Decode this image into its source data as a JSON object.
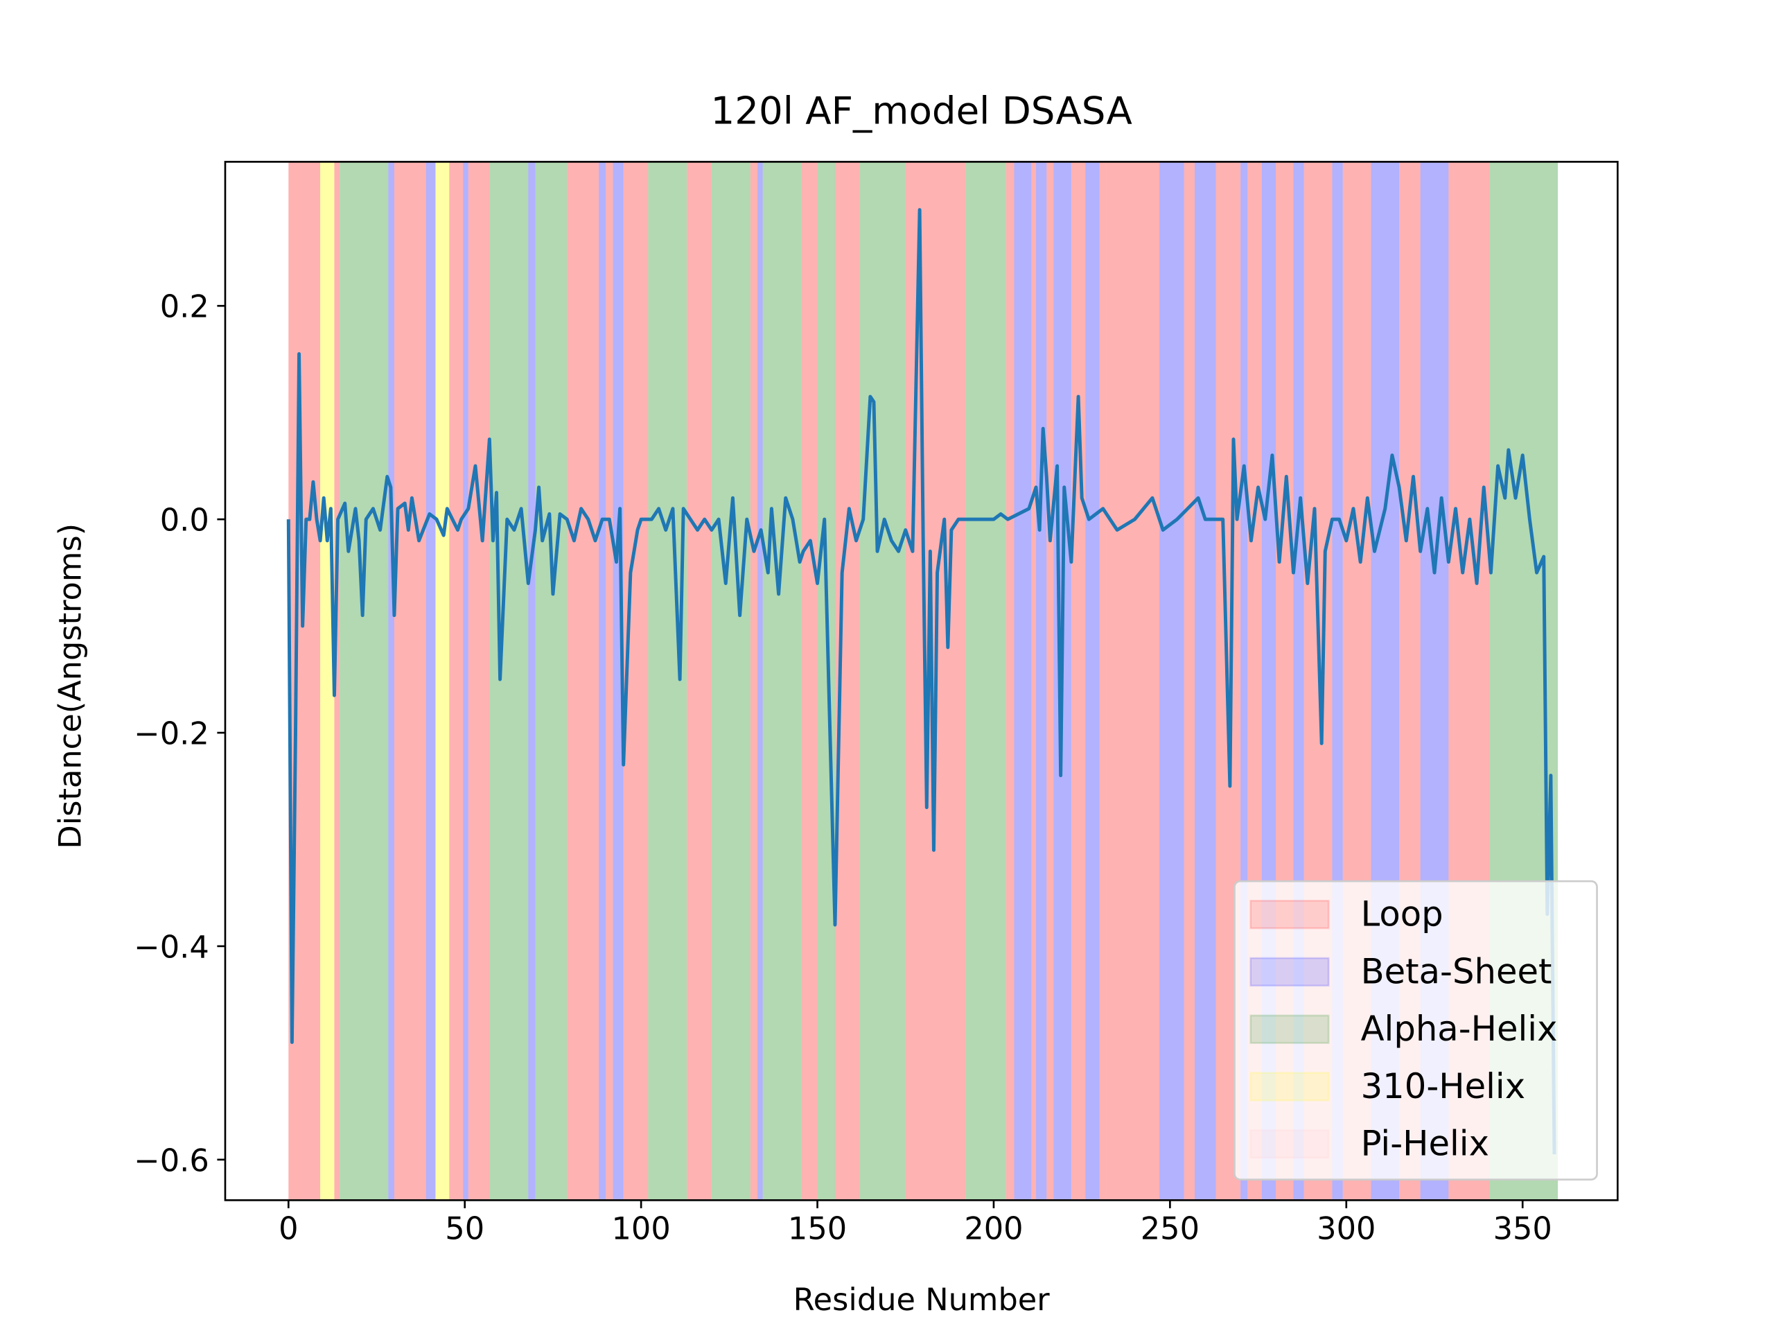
{
  "chart_data": {
    "type": "line",
    "title": "120l AF_model DSASA",
    "x_label": "Residue Number",
    "y_label": "Distance(Angstroms)",
    "xlim": [
      -17.95,
      376.95
    ],
    "ylim": [
      -0.638,
      0.335
    ],
    "xticks": [
      0,
      50,
      100,
      150,
      200,
      250,
      300,
      350
    ],
    "yticks": [
      {
        "value": -0.6,
        "label": "−0.6"
      },
      {
        "value": -0.4,
        "label": "−0.4"
      },
      {
        "value": -0.2,
        "label": "−0.2"
      },
      {
        "value": 0,
        "label": "0.0"
      },
      0.2
    ],
    "legend_position": "lower right",
    "legend": [
      {
        "name": "Loop",
        "color": "#ff0000"
      },
      {
        "name": "Beta-Sheet",
        "color": "#0000ff"
      },
      {
        "name": "Alpha-Helix",
        "color": "#008000"
      },
      {
        "name": "310-Helix",
        "color": "#ffff00"
      },
      {
        "name": "Pi-Helix",
        "color": "#ffc0cb"
      }
    ],
    "regions": [
      [
        0,
        9,
        0
      ],
      [
        9,
        13,
        3
      ],
      [
        13,
        14.5,
        0
      ],
      [
        14.5,
        28.3,
        2
      ],
      [
        28.3,
        30,
        1
      ],
      [
        30,
        39,
        0
      ],
      [
        39,
        41.7,
        1
      ],
      [
        41.7,
        45.6,
        3
      ],
      [
        45.6,
        49.5,
        0
      ],
      [
        49.5,
        51,
        1
      ],
      [
        51,
        57,
        0
      ],
      [
        57,
        68,
        2
      ],
      [
        68,
        70,
        1
      ],
      [
        70,
        79,
        2
      ],
      [
        79,
        88,
        0
      ],
      [
        88,
        90,
        1
      ],
      [
        90,
        92,
        0
      ],
      [
        92,
        95,
        1
      ],
      [
        95,
        102,
        0
      ],
      [
        102,
        113,
        2
      ],
      [
        113,
        120,
        0
      ],
      [
        120,
        131,
        2
      ],
      [
        131,
        133,
        0
      ],
      [
        133,
        134.5,
        1
      ],
      [
        134.5,
        145.5,
        2
      ],
      [
        145.5,
        150,
        0
      ],
      [
        150,
        155,
        2
      ],
      [
        155,
        162,
        0
      ],
      [
        162,
        175,
        2
      ],
      [
        175,
        192,
        0
      ],
      [
        192,
        203.5,
        2
      ],
      [
        203.5,
        205.8,
        0
      ],
      [
        205.8,
        210.7,
        1
      ],
      [
        210.7,
        212,
        0
      ],
      [
        212,
        215,
        1
      ],
      [
        215,
        217,
        0
      ],
      [
        217,
        222,
        1
      ],
      [
        222,
        226,
        0
      ],
      [
        226,
        230,
        1
      ],
      [
        230,
        232,
        0
      ],
      [
        232,
        247,
        0
      ],
      [
        247,
        254,
        1
      ],
      [
        254,
        257,
        0
      ],
      [
        257,
        263,
        1
      ],
      [
        263,
        270,
        0
      ],
      [
        270,
        272,
        1
      ],
      [
        272,
        276,
        0
      ],
      [
        276,
        280,
        1
      ],
      [
        280,
        285,
        0
      ],
      [
        285,
        288,
        1
      ],
      [
        288,
        296,
        0
      ],
      [
        296,
        299,
        1
      ],
      [
        299,
        307,
        0
      ],
      [
        307,
        315,
        1
      ],
      [
        315,
        321,
        0
      ],
      [
        321,
        329,
        1
      ],
      [
        329,
        340.6,
        0
      ],
      [
        340.6,
        360,
        2
      ]
    ],
    "series": [
      {
        "color": "#1f77b4",
        "x": [
          0,
          1,
          2,
          3,
          4,
          5,
          6,
          7,
          8,
          9,
          10,
          11,
          12,
          13,
          14,
          16,
          17,
          19,
          20,
          21,
          22,
          24,
          26,
          28,
          29,
          30,
          31,
          33,
          34,
          35,
          37,
          40,
          42,
          44,
          45,
          48,
          49,
          51,
          53,
          55,
          57,
          58,
          59,
          60,
          62,
          64,
          66,
          68,
          70,
          71,
          72,
          74,
          75,
          77,
          79,
          81,
          83,
          85,
          87,
          89,
          91,
          93,
          94,
          95,
          97,
          99,
          100,
          103,
          105,
          107,
          109,
          111,
          112,
          114,
          116,
          118,
          120,
          122,
          124,
          126,
          128,
          130,
          132,
          134,
          136,
          137,
          139,
          141,
          143,
          145,
          146,
          148,
          150,
          152,
          155,
          157,
          159,
          161,
          163,
          165,
          166,
          167,
          169,
          171,
          173,
          175,
          177,
          179,
          180,
          181,
          182,
          183,
          184,
          186,
          187,
          188,
          190,
          200,
          202,
          204,
          210,
          212,
          213,
          214,
          215,
          216,
          218,
          219,
          220,
          222,
          224,
          225,
          227,
          231,
          235,
          240,
          245,
          248,
          252,
          258,
          260,
          265,
          267,
          268,
          269,
          271,
          273,
          275,
          277,
          279,
          281,
          283,
          285,
          287,
          289,
          291,
          293,
          294,
          296,
          298,
          300,
          302,
          304,
          306,
          308,
          311,
          313,
          315,
          317,
          319,
          321,
          323,
          325,
          327,
          329,
          331,
          333,
          335,
          337,
          339,
          341,
          343,
          345,
          346,
          348,
          350,
          352,
          354,
          356,
          357,
          358,
          359
        ],
        "values": [
          0,
          -0.49,
          -0.2,
          0.155,
          -0.1,
          0,
          0,
          0.035,
          0,
          -0.02,
          0.02,
          -0.02,
          0.01,
          -0.165,
          0,
          0.015,
          -0.03,
          0.01,
          -0.02,
          -0.09,
          0,
          0.01,
          -0.01,
          0.04,
          0.03,
          -0.09,
          0.01,
          0.015,
          -0.01,
          0.02,
          -0.02,
          0.005,
          0,
          -0.015,
          0.01,
          -0.01,
          0,
          0.01,
          0.05,
          -0.02,
          0.075,
          -0.02,
          0.025,
          -0.15,
          0,
          -0.01,
          0.01,
          -0.06,
          -0.01,
          0.03,
          -0.02,
          0.005,
          -0.07,
          0.005,
          0,
          -0.02,
          0.01,
          0,
          -0.02,
          0,
          0,
          -0.04,
          0.01,
          -0.23,
          -0.05,
          -0.01,
          0,
          0,
          0.01,
          -0.01,
          0.01,
          -0.15,
          0.01,
          0,
          -0.01,
          0,
          -0.01,
          0,
          -0.06,
          0.02,
          -0.09,
          0,
          -0.03,
          -0.01,
          -0.05,
          0.01,
          -0.07,
          0.02,
          0,
          -0.04,
          -0.03,
          -0.02,
          -0.06,
          0,
          -0.38,
          -0.05,
          0.01,
          -0.02,
          0,
          0.115,
          0.11,
          -0.03,
          0,
          -0.02,
          -0.03,
          -0.01,
          -0.03,
          0.29,
          -0.02,
          -0.27,
          -0.03,
          -0.31,
          -0.05,
          0,
          -0.12,
          -0.01,
          0,
          0,
          0.005,
          0,
          0.01,
          0.03,
          -0.01,
          0.085,
          0.04,
          -0.02,
          0.05,
          -0.24,
          0.03,
          -0.04,
          0.115,
          0.02,
          0,
          0.01,
          -0.01,
          0,
          0.02,
          -0.01,
          0,
          0.02,
          0,
          0,
          -0.25,
          0.075,
          0,
          0.05,
          -0.02,
          0.03,
          0,
          0.06,
          -0.04,
          0.04,
          -0.05,
          0.02,
          -0.06,
          0.01,
          -0.21,
          -0.03,
          0,
          0,
          -0.02,
          0.01,
          -0.04,
          0.02,
          -0.03,
          0.01,
          0.06,
          0.03,
          -0.02,
          0.04,
          -0.03,
          0.01,
          -0.05,
          0.02,
          -0.04,
          0.01,
          -0.05,
          0,
          -0.06,
          0.03,
          -0.05,
          0.05,
          0.02,
          0.065,
          0.02,
          0.06,
          0,
          -0.05,
          -0.035,
          -0.37,
          -0.24,
          -0.595
        ]
      }
    ]
  }
}
